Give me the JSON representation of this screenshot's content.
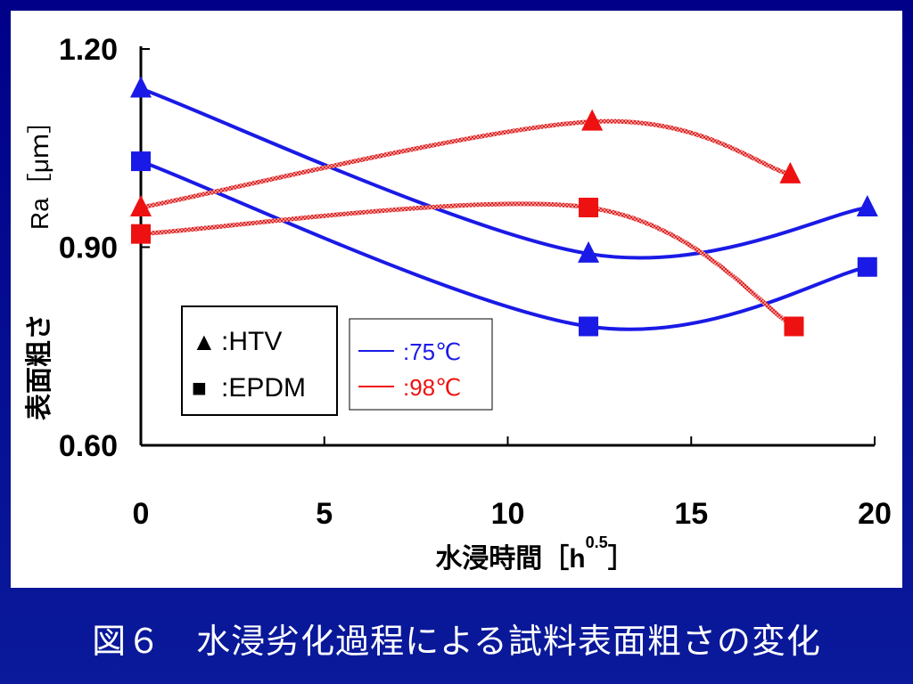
{
  "caption": "図６　水浸劣化過程による試料表面粗さの変化",
  "chart_data": {
    "type": "line",
    "xlabel": "水浸時間［h",
    "xlabel_sup": "0.5",
    "xlabel_end": "］",
    "ylabel_ja": "表面粗さ",
    "ylabel_unit": "Ra［μｍ］",
    "xlim": [
      0,
      20
    ],
    "ylim": [
      0.6,
      1.2
    ],
    "x_ticks": [
      "0",
      "5",
      "10",
      "15",
      "20"
    ],
    "x_tick_values": [
      0,
      5,
      10,
      15,
      20
    ],
    "y_ticks": [
      "0.60",
      "0.90",
      "1.20"
    ],
    "y_tick_values": [
      0.6,
      0.9,
      1.2
    ],
    "colors": {
      "c75": "#1a1ae6",
      "c98": "#ee1111"
    },
    "series": [
      {
        "material": "HTV",
        "temp": "75",
        "marker": "triangle",
        "color": "#1a1ae6",
        "x": [
          0,
          12.2,
          19.8
        ],
        "y": [
          1.14,
          0.89,
          0.96
        ]
      },
      {
        "material": "EPDM",
        "temp": "75",
        "marker": "square",
        "color": "#1a1ae6",
        "x": [
          0,
          12.2,
          19.8
        ],
        "y": [
          1.03,
          0.78,
          0.87
        ]
      },
      {
        "material": "HTV",
        "temp": "98",
        "marker": "triangle",
        "color": "#ee1111",
        "x": [
          0,
          12.3,
          17.7
        ],
        "y": [
          0.96,
          1.09,
          1.01
        ]
      },
      {
        "material": "EPDM",
        "temp": "98",
        "marker": "square",
        "color": "#ee1111",
        "x": [
          0,
          12.2,
          17.8
        ],
        "y": [
          0.92,
          0.96,
          0.78
        ]
      }
    ],
    "legend_markers": [
      {
        "symbol": "▲",
        "label": ":HTV"
      },
      {
        "symbol": "■",
        "label": ":EPDM"
      }
    ],
    "legend_lines": [
      {
        "label": ":75℃",
        "color": "#1a1ae6"
      },
      {
        "label": ":98℃",
        "color": "#ee1111"
      }
    ]
  }
}
